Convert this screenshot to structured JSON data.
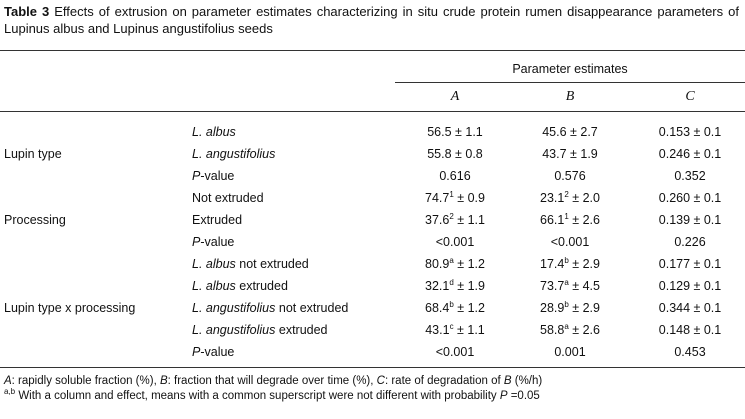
{
  "caption": {
    "label": "Table 3",
    "text": "Effects of extrusion on parameter estimates characterizing in situ crude protein rumen disappearance parameters of Lupinus albus and Lupinus angustifolius seeds"
  },
  "header": {
    "group": "Parameter estimates",
    "columns": [
      "A",
      "B",
      "C"
    ]
  },
  "groups": [
    {
      "name": "Lupin type",
      "rows": [
        {
          "label": [
            {
              "text": "L. albus",
              "italic": true
            }
          ],
          "cells": [
            "56.5 ± 1.1",
            "45.6 ± 2.7",
            "0.153 ± 0.1"
          ]
        },
        {
          "label": [
            {
              "text": "L. angustifolius",
              "italic": true
            }
          ],
          "cells": [
            "55.8 ± 0.8",
            "43.7 ± 1.9",
            "0.246 ± 0.1"
          ]
        },
        {
          "label": [
            {
              "text": "P",
              "italic": true
            },
            {
              "text": "-value"
            }
          ],
          "cells": [
            "0.616",
            "0.576",
            "0.352"
          ]
        }
      ]
    },
    {
      "name": "Processing",
      "rows": [
        {
          "label": [
            {
              "text": "Not extruded"
            }
          ],
          "cells": [
            {
              "v": "74.7",
              "sup": "1",
              "err": " ± 0.9"
            },
            {
              "v": "23.1",
              "sup": "2",
              "err": " ± 2.0"
            },
            "0.260 ± 0.1"
          ]
        },
        {
          "label": [
            {
              "text": "Extruded"
            }
          ],
          "cells": [
            {
              "v": "37.6",
              "sup": "2",
              "err": " ± 1.1"
            },
            {
              "v": "66.1",
              "sup": "1",
              "err": " ± 2.6"
            },
            "0.139 ± 0.1"
          ]
        },
        {
          "label": [
            {
              "text": "P",
              "italic": true
            },
            {
              "text": "-value"
            }
          ],
          "cells": [
            "<0.001",
            "<0.001",
            "0.226"
          ]
        }
      ]
    },
    {
      "name": "Lupin type x processing",
      "rows": [
        {
          "label": [
            {
              "text": "L. albus",
              "italic": true
            },
            {
              "text": " not extruded"
            }
          ],
          "cells": [
            {
              "v": "80.9",
              "sup": "a",
              "err": " ± 1.2"
            },
            {
              "v": "17.4",
              "sup": "b",
              "err": " ± 2.9"
            },
            "0.177 ± 0.1"
          ]
        },
        {
          "label": [
            {
              "text": "L. albus",
              "italic": true
            },
            {
              "text": " extruded"
            }
          ],
          "cells": [
            {
              "v": "32.1",
              "sup": "d",
              "err": " ± 1.9"
            },
            {
              "v": "73.7",
              "sup": "a",
              "err": " ± 4.5"
            },
            "0.129 ± 0.1"
          ]
        },
        {
          "label": [
            {
              "text": "L. angustifolius",
              "italic": true
            },
            {
              "text": " not extruded"
            }
          ],
          "cells": [
            {
              "v": "68.4",
              "sup": "b",
              "err": " ± 1.2"
            },
            {
              "v": "28.9",
              "sup": "b",
              "err": " ± 2.9"
            },
            "0.344 ± 0.1"
          ]
        },
        {
          "label": [
            {
              "text": "L. angustifolius",
              "italic": true
            },
            {
              "text": " extruded"
            }
          ],
          "cells": [
            {
              "v": "43.1",
              "sup": "c",
              "err": " ± 1.1"
            },
            {
              "v": "58.8",
              "sup": "a",
              "err": " ± 2.6"
            },
            "0.148 ± 0.1"
          ]
        },
        {
          "label": [
            {
              "text": "P",
              "italic": true
            },
            {
              "text": "-value"
            }
          ],
          "cells": [
            "<0.001",
            "0.001",
            "0.453"
          ]
        }
      ]
    }
  ],
  "footnotes": [
    [
      {
        "text": "A",
        "italic": true
      },
      {
        "text": ": rapidly soluble fraction (%), "
      },
      {
        "text": "B",
        "italic": true
      },
      {
        "text": ": fraction that will degrade over time (%), "
      },
      {
        "text": "C",
        "italic": true
      },
      {
        "text": ": rate of degradation of "
      },
      {
        "text": "B",
        "italic": true
      },
      {
        "text": " (%/h)"
      }
    ],
    [
      {
        "text": "a,b",
        "sup": true
      },
      {
        "text": " With a column and effect, means with a common superscript were not different with probability "
      },
      {
        "text": "P",
        "italic": true
      },
      {
        "text": " =0.05"
      }
    ]
  ]
}
